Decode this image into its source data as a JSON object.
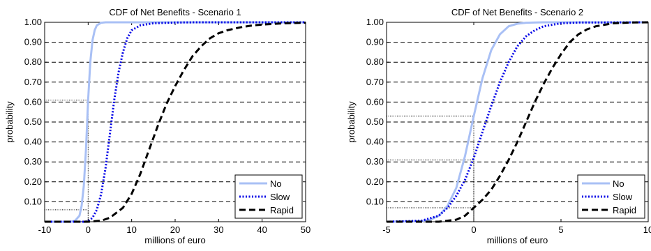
{
  "chart_data": [
    {
      "type": "line",
      "title": "CDF of Net Benefits - Scenario 1",
      "xlabel": "millions of euro",
      "ylabel": "probability",
      "xlim": [
        -10,
        50
      ],
      "ylim": [
        0,
        1
      ],
      "xticks": [
        "-10",
        "0",
        "10",
        "20",
        "30",
        "40",
        "50"
      ],
      "yticks": [
        "0.10",
        "0.20",
        "0.30",
        "0.40",
        "0.50",
        "0.60",
        "0.70",
        "0.80",
        "0.90",
        "1.00"
      ],
      "grid": "horizontal dashed",
      "legend_position": "bottom-right",
      "series": [
        {
          "name": "No",
          "color": "#a9c0f5",
          "style": "solid",
          "x": [
            -10,
            -4,
            -3,
            -2,
            -1.5,
            -1,
            -0.5,
            0,
            0.5,
            1,
            1.5,
            2,
            3,
            4,
            50
          ],
          "y": [
            0,
            0,
            0.005,
            0.03,
            0.08,
            0.18,
            0.36,
            0.61,
            0.8,
            0.91,
            0.96,
            0.985,
            0.998,
            1,
            1
          ]
        },
        {
          "name": "Slow",
          "color": "#0000e6",
          "style": "dotted",
          "x": [
            -10,
            -1,
            0,
            1,
            2,
            3,
            4,
            5,
            6,
            7,
            8,
            9,
            10,
            12,
            15,
            20,
            25,
            30,
            40,
            50
          ],
          "y": [
            0,
            0,
            0.002,
            0.02,
            0.06,
            0.14,
            0.27,
            0.44,
            0.61,
            0.75,
            0.85,
            0.92,
            0.96,
            0.985,
            0.995,
            0.999,
            1,
            1,
            1,
            1
          ]
        },
        {
          "name": "Rapid",
          "color": "#000000",
          "style": "dashed",
          "x": [
            -10,
            0,
            3,
            5,
            8,
            10,
            12,
            14,
            16,
            18,
            20,
            22,
            24,
            26,
            28,
            30,
            32,
            35,
            38,
            41,
            45,
            50
          ],
          "y": [
            0,
            0,
            0.005,
            0.02,
            0.07,
            0.14,
            0.24,
            0.36,
            0.48,
            0.59,
            0.68,
            0.76,
            0.83,
            0.88,
            0.92,
            0.945,
            0.96,
            0.975,
            0.985,
            0.99,
            0.995,
            0.998
          ]
        }
      ],
      "reference_lines": [
        {
          "x": 0,
          "y": 0.61
        },
        {
          "x": 0,
          "y": 0.06
        }
      ]
    },
    {
      "type": "line",
      "title": "CDF of Net Benefits - Scenario 2",
      "xlabel": "millions of euro",
      "ylabel": "probability",
      "xlim": [
        -5,
        10
      ],
      "ylim": [
        0,
        1
      ],
      "xticks": [
        "-5",
        "0",
        "5",
        "10"
      ],
      "yticks": [
        "0.10",
        "0.20",
        "0.30",
        "0.40",
        "0.50",
        "0.60",
        "0.70",
        "0.80",
        "0.90",
        "1.00"
      ],
      "grid": "horizontal dashed",
      "legend_position": "bottom-right",
      "series": [
        {
          "name": "No",
          "color": "#a9c0f5",
          "style": "solid",
          "x": [
            -5,
            -3,
            -2.5,
            -2,
            -1.5,
            -1,
            -0.5,
            0,
            0.5,
            1,
            1.5,
            2,
            2.5,
            3,
            4,
            10
          ],
          "y": [
            0,
            0.003,
            0.01,
            0.03,
            0.08,
            0.17,
            0.33,
            0.53,
            0.72,
            0.86,
            0.94,
            0.98,
            0.993,
            0.998,
            1,
            1
          ]
        },
        {
          "name": "Slow",
          "color": "#0000e6",
          "style": "dotted",
          "x": [
            -5,
            -3,
            -2,
            -1.5,
            -1,
            -0.5,
            0,
            0.5,
            1,
            1.5,
            2,
            2.5,
            3,
            3.5,
            4,
            5,
            6,
            10
          ],
          "y": [
            0,
            0.005,
            0.03,
            0.07,
            0.13,
            0.21,
            0.32,
            0.45,
            0.58,
            0.7,
            0.8,
            0.88,
            0.93,
            0.96,
            0.98,
            0.995,
            0.999,
            1
          ]
        },
        {
          "name": "Rapid",
          "color": "#000000",
          "style": "dashed",
          "x": [
            -5,
            -2,
            -1,
            -0.5,
            0,
            0.5,
            1,
            1.5,
            2,
            2.5,
            3,
            3.5,
            4,
            4.5,
            5,
            5.5,
            6,
            6.5,
            7,
            8,
            9,
            10
          ],
          "y": [
            0,
            0,
            0.01,
            0.03,
            0.07,
            0.11,
            0.16,
            0.23,
            0.31,
            0.4,
            0.5,
            0.6,
            0.69,
            0.77,
            0.84,
            0.9,
            0.94,
            0.965,
            0.98,
            0.995,
            0.999,
            1
          ]
        }
      ],
      "reference_lines": [
        {
          "x": 0,
          "y": 0.53
        },
        {
          "x": 0,
          "y": 0.31
        },
        {
          "x": 0,
          "y": 0.07
        }
      ]
    }
  ]
}
